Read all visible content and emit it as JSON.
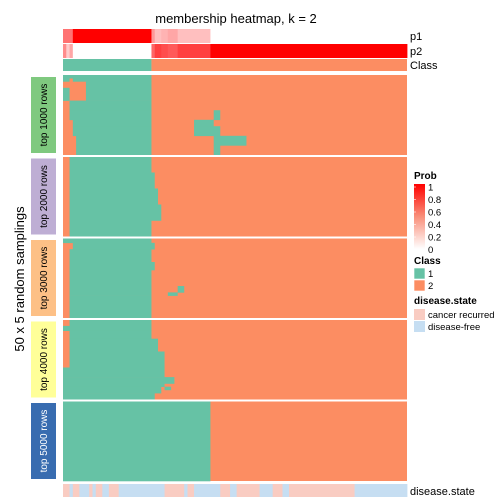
{
  "chart_data": {
    "type": "heatmap",
    "title": "membership heatmap, k = 2",
    "y_axis_label": "50 x 5 random samplings",
    "n_samples": 105,
    "annotation_rows": [
      "p1",
      "p2",
      "Class"
    ],
    "bottom_annotation_label": "disease.state",
    "colors": {
      "class_1": "#66C2A5",
      "class_2": "#FC8D62",
      "cancer_recurred": "#F9CCC2",
      "disease_free": "#C6DEF2",
      "prob_low": "#ffffff",
      "prob_high": "#ff0000",
      "separator": "#ffffff"
    },
    "p1_segments": [
      {
        "from": 0,
        "to": 3,
        "p": 0.55
      },
      {
        "from": 3,
        "to": 27,
        "p": 1.0
      },
      {
        "from": 27,
        "to": 28,
        "p": 0.4
      },
      {
        "from": 28,
        "to": 30,
        "p": 0.25
      },
      {
        "from": 30,
        "to": 32,
        "p": 0.3
      },
      {
        "from": 32,
        "to": 35,
        "p": 0.35
      },
      {
        "from": 35,
        "to": 45,
        "p": 0.25
      },
      {
        "from": 45,
        "to": 105,
        "p": 0.0
      }
    ],
    "p2_segments": [
      {
        "from": 0,
        "to": 1,
        "p": 0.45
      },
      {
        "from": 1,
        "to": 2,
        "p": 0.2
      },
      {
        "from": 2,
        "to": 3,
        "p": 0.35
      },
      {
        "from": 3,
        "to": 27,
        "p": 0.0
      },
      {
        "from": 27,
        "to": 28,
        "p": 0.6
      },
      {
        "from": 28,
        "to": 30,
        "p": 0.75
      },
      {
        "from": 30,
        "to": 32,
        "p": 0.7
      },
      {
        "from": 32,
        "to": 35,
        "p": 0.65
      },
      {
        "from": 35,
        "to": 45,
        "p": 0.75
      },
      {
        "from": 45,
        "to": 105,
        "p": 1.0
      }
    ],
    "class_boundary": 27,
    "groups": [
      {
        "label": "top 1000 rows",
        "color": "#7FC97F",
        "n_rows": 50,
        "rows": [
          {
            "n": 2,
            "cls1": [
              [
                0,
                27
              ]
            ]
          },
          {
            "n": 2,
            "cls1": [
              [
                0,
                2
              ],
              [
                3,
                27
              ]
            ]
          },
          {
            "n": 4,
            "cls1": [
              [
                7,
                27
              ]
            ]
          },
          {
            "n": 8,
            "cls1": [
              [
                0,
                2
              ],
              [
                7,
                27
              ]
            ]
          },
          {
            "n": 6,
            "cls1": [
              [
                2,
                27
              ]
            ]
          },
          {
            "n": 6,
            "cls1": [
              [
                2,
                27
              ],
              [
                46,
                48
              ]
            ]
          },
          {
            "n": 4,
            "cls1": [
              [
                3,
                27
              ],
              [
                40,
                46
              ]
            ]
          },
          {
            "n": 6,
            "cls1": [
              [
                3,
                27
              ],
              [
                40,
                48
              ]
            ]
          },
          {
            "n": 6,
            "cls1": [
              [
                4,
                27
              ],
              [
                46,
                56
              ]
            ]
          },
          {
            "n": 6,
            "cls1": [
              [
                4,
                27
              ],
              [
                46,
                48
              ]
            ]
          }
        ]
      },
      {
        "label": "top 2000 rows",
        "color": "#BEAED4",
        "n_rows": 50,
        "rows": [
          {
            "n": 10,
            "cls1": [
              [
                2,
                27
              ]
            ]
          },
          {
            "n": 10,
            "cls1": [
              [
                2,
                28
              ]
            ]
          },
          {
            "n": 10,
            "cls1": [
              [
                2,
                29
              ]
            ]
          },
          {
            "n": 10,
            "cls1": [
              [
                2,
                30
              ]
            ]
          },
          {
            "n": 10,
            "cls1": [
              [
                2,
                27
              ]
            ]
          }
        ]
      },
      {
        "label": "top 3000 rows",
        "color": "#FDC086",
        "n_rows": 50,
        "rows": [
          {
            "n": 3,
            "cls1": [
              [
                0,
                27
              ]
            ]
          },
          {
            "n": 4,
            "cls1": [
              [
                3,
                28
              ]
            ]
          },
          {
            "n": 8,
            "cls1": [
              [
                2,
                27
              ]
            ]
          },
          {
            "n": 5,
            "cls1": [
              [
                2,
                28
              ]
            ]
          },
          {
            "n": 10,
            "cls1": [
              [
                2,
                27
              ]
            ]
          },
          {
            "n": 4,
            "cls1": [
              [
                2,
                27
              ],
              [
                35,
                37
              ]
            ]
          },
          {
            "n": 2,
            "cls1": [
              [
                2,
                27
              ],
              [
                32,
                35
              ]
            ]
          },
          {
            "n": 4,
            "cls1": [
              [
                2,
                27
              ]
            ]
          },
          {
            "n": 10,
            "cls1": [
              [
                2,
                27
              ]
            ]
          }
        ]
      },
      {
        "label": "top 4000 rows",
        "color": "#FFFF99",
        "n_rows": 50,
        "rows": [
          {
            "n": 4,
            "cls1": [
              [
                2,
                27
              ]
            ]
          },
          {
            "n": 3,
            "cls1": [
              [
                0,
                27
              ]
            ]
          },
          {
            "n": 5,
            "cls1": [
              [
                2,
                27
              ]
            ]
          },
          {
            "n": 8,
            "cls1": [
              [
                2,
                29
              ]
            ]
          },
          {
            "n": 10,
            "cls1": [
              [
                2,
                31
              ]
            ]
          },
          {
            "n": 6,
            "cls1": [
              [
                0,
                31
              ]
            ]
          },
          {
            "n": 4,
            "cls1": [
              [
                0,
                34
              ]
            ]
          },
          {
            "n": 2,
            "cls1": [
              [
                0,
                31
              ]
            ]
          },
          {
            "n": 2,
            "cls1": [
              [
                0,
                30
              ],
              [
                31,
                33
              ]
            ]
          },
          {
            "n": 2,
            "cls1": [
              [
                0,
                30
              ]
            ]
          },
          {
            "n": 4,
            "cls1": [
              [
                0,
                28
              ]
            ]
          }
        ]
      },
      {
        "label": "top 5000 rows",
        "color": "#386CB0",
        "n_rows": 50,
        "rows": [
          {
            "n": 50,
            "cls1": [
              [
                0,
                45
              ]
            ]
          }
        ]
      }
    ],
    "disease_state_segments": [
      {
        "from": 0,
        "to": 2,
        "state": "cancer recurred"
      },
      {
        "from": 2,
        "to": 3,
        "state": "disease-free"
      },
      {
        "from": 3,
        "to": 5,
        "state": "cancer recurred"
      },
      {
        "from": 5,
        "to": 8,
        "state": "disease-free"
      },
      {
        "from": 8,
        "to": 9,
        "state": "cancer recurred"
      },
      {
        "from": 9,
        "to": 10,
        "state": "disease-free"
      },
      {
        "from": 10,
        "to": 12,
        "state": "cancer recurred"
      },
      {
        "from": 12,
        "to": 14,
        "state": "disease-free"
      },
      {
        "from": 14,
        "to": 17,
        "state": "cancer recurred"
      },
      {
        "from": 17,
        "to": 31,
        "state": "disease-free"
      },
      {
        "from": 31,
        "to": 37,
        "state": "cancer recurred"
      },
      {
        "from": 37,
        "to": 38,
        "state": "disease-free"
      },
      {
        "from": 38,
        "to": 40,
        "state": "cancer recurred"
      },
      {
        "from": 40,
        "to": 48,
        "state": "disease-free"
      },
      {
        "from": 48,
        "to": 51,
        "state": "cancer recurred"
      },
      {
        "from": 51,
        "to": 53,
        "state": "disease-free"
      },
      {
        "from": 53,
        "to": 60,
        "state": "cancer recurred"
      },
      {
        "from": 60,
        "to": 64,
        "state": "disease-free"
      },
      {
        "from": 64,
        "to": 67,
        "state": "cancer recurred"
      },
      {
        "from": 67,
        "to": 69,
        "state": "disease-free"
      },
      {
        "from": 69,
        "to": 89,
        "state": "cancer recurred"
      },
      {
        "from": 89,
        "to": 105,
        "state": "disease-free"
      }
    ],
    "legend": {
      "prob_title": "Prob",
      "prob_ticks": [
        "1",
        "0.8",
        "0.6",
        "0.4",
        "0.2",
        "0"
      ],
      "class_title": "Class",
      "class_entries": [
        {
          "label": "1",
          "color": "#66C2A5"
        },
        {
          "label": "2",
          "color": "#FC8D62"
        }
      ],
      "disease_title": "disease.state",
      "disease_entries": [
        {
          "label": "cancer recurred",
          "color": "#F9CCC2"
        },
        {
          "label": "disease-free",
          "color": "#C6DEF2"
        }
      ]
    }
  }
}
